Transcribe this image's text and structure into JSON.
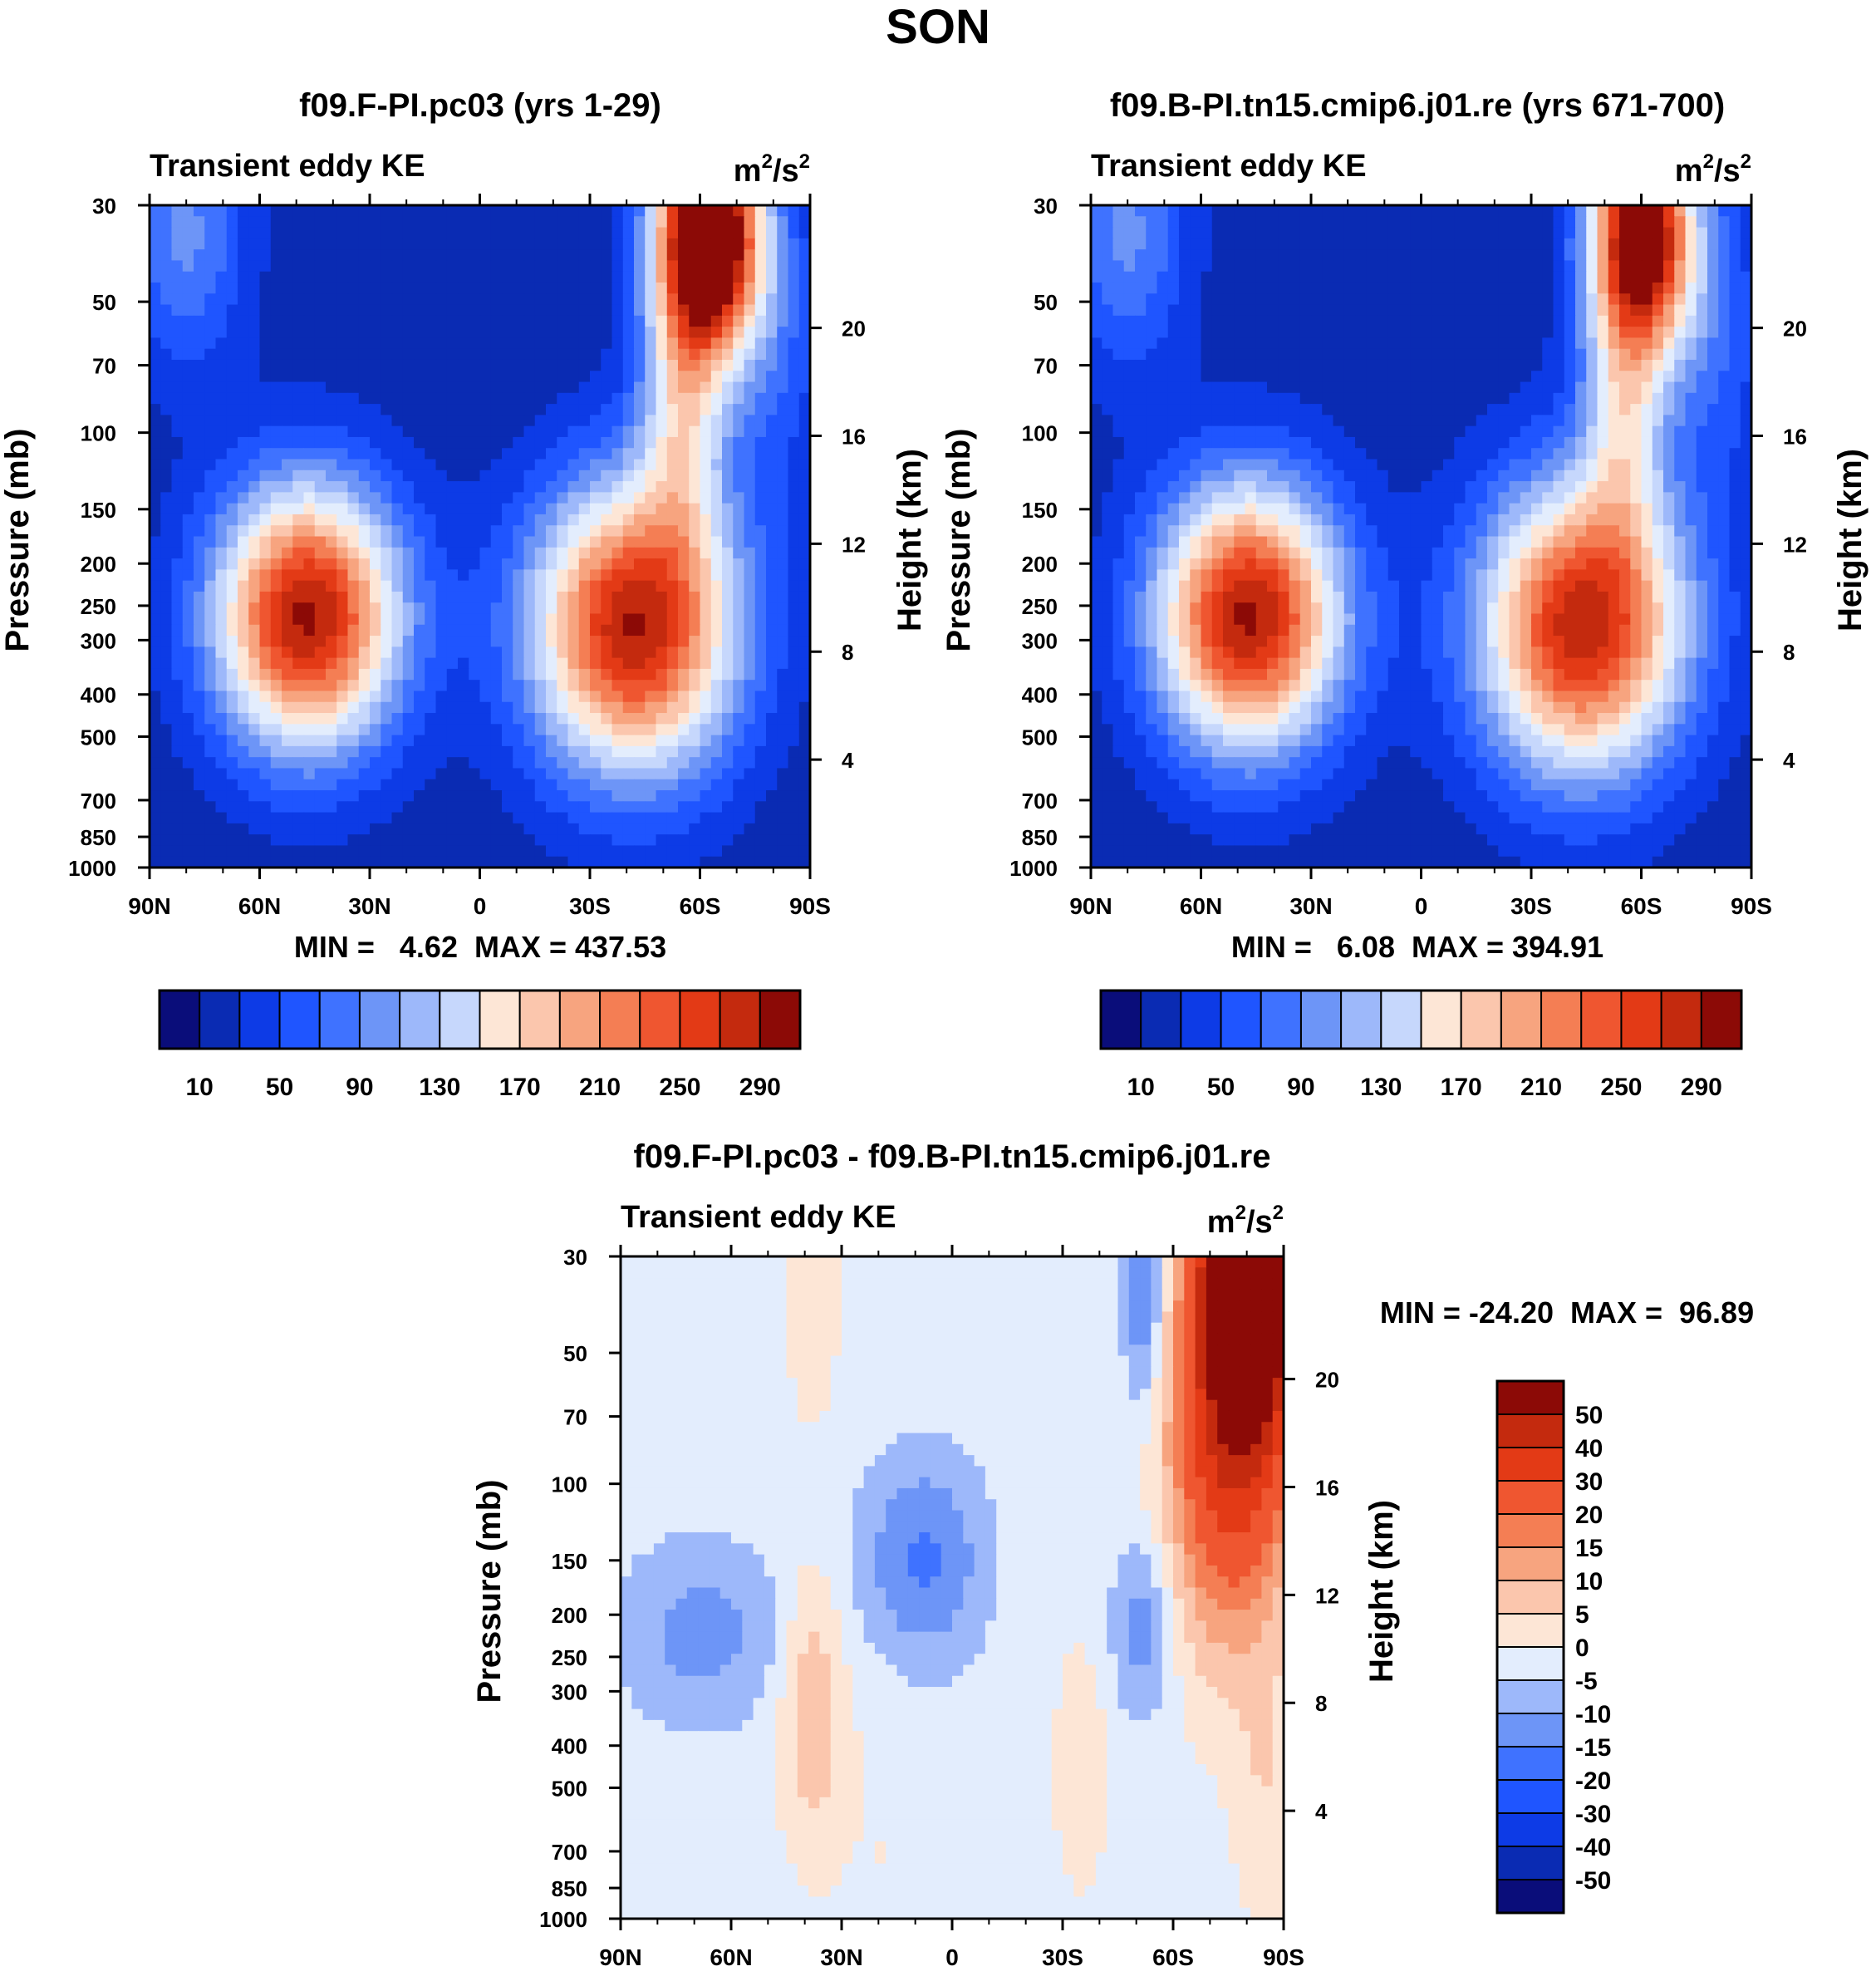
{
  "title": "SON",
  "palette_full": [
    "#0a0d7a",
    "#0a2bb3",
    "#0d3be6",
    "#1f55ff",
    "#3f72ff",
    "#6d95f7",
    "#9db8fa",
    "#c6d7fc",
    "#e3edfd",
    "#fde6d6",
    "#fbc6ad",
    "#f7a47f",
    "#f47e54",
    "#ef5630",
    "#e33a16",
    "#c42a0e",
    "#8c0a06"
  ],
  "chart_data": [
    {
      "type": "contour",
      "id": "p1",
      "title": "f09.F-PI.pc03 (yrs 1-29)",
      "left_label": "Transient eddy KE",
      "units_base": "m",
      "units_exp1": "2",
      "units_mid": "/s",
      "units_exp2": "2",
      "ylabel": "Pressure (mb)",
      "ylabel_right": "Height (km)",
      "xticks": [
        "90N",
        "60N",
        "30N",
        "0",
        "30S",
        "60S",
        "90S"
      ],
      "yticks": [
        "30",
        "50",
        "70",
        "100",
        "150",
        "200",
        "250",
        "300",
        "400",
        "500",
        "700",
        "850",
        "1000"
      ],
      "ytick_values": [
        30,
        50,
        70,
        100,
        150,
        200,
        250,
        300,
        400,
        500,
        700,
        850,
        1000
      ],
      "height_ticks": [
        "20",
        "16",
        "12",
        "8",
        "4"
      ],
      "height_values": [
        20,
        16,
        12,
        8,
        4
      ],
      "stats": "MIN =   4.62  MAX = 437.53",
      "fields": {
        "base": 15,
        "blobs": [
          {
            "lat": 47,
            "p": 265,
            "amp": 300,
            "wl": 18,
            "wp": 0.5
          },
          {
            "lat": -42,
            "p": 280,
            "amp": 295,
            "wl": 20,
            "wp": 0.55
          },
          {
            "lat": -62,
            "p": 35,
            "amp": 400,
            "wl": 10,
            "wp": 0.45
          },
          {
            "lat": -55,
            "p": 90,
            "amp": 120,
            "wl": 8,
            "wp": 0.5
          },
          {
            "lat": 80,
            "p": 35,
            "amp": 80,
            "wl": 12,
            "wp": 0.5
          },
          {
            "lat": -80,
            "p": 60,
            "amp": 50,
            "wl": 10,
            "wp": 0.6
          }
        ]
      }
    },
    {
      "type": "contour",
      "id": "p2",
      "title": "f09.B-PI.tn15.cmip6.j01.re (yrs 671-700)",
      "left_label": "Transient eddy KE",
      "units_base": "m",
      "units_exp1": "2",
      "units_mid": "/s",
      "units_exp2": "2",
      "ylabel": "Pressure (mb)",
      "ylabel_right": "Height (km)",
      "xticks": [
        "90N",
        "60N",
        "30N",
        "0",
        "30S",
        "60S",
        "90S"
      ],
      "yticks": [
        "30",
        "50",
        "70",
        "100",
        "150",
        "200",
        "250",
        "300",
        "400",
        "500",
        "700",
        "850",
        "1000"
      ],
      "ytick_values": [
        30,
        50,
        70,
        100,
        150,
        200,
        250,
        300,
        400,
        500,
        700,
        850,
        1000
      ],
      "height_ticks": [
        "20",
        "16",
        "12",
        "8",
        "4"
      ],
      "height_values": [
        20,
        16,
        12,
        8,
        4
      ],
      "stats": "MIN =   6.08  MAX = 394.91",
      "fields": {
        "base": 15,
        "blobs": [
          {
            "lat": 47,
            "p": 265,
            "amp": 300,
            "wl": 18,
            "wp": 0.5
          },
          {
            "lat": -44,
            "p": 280,
            "amp": 290,
            "wl": 20,
            "wp": 0.55
          },
          {
            "lat": -60,
            "p": 35,
            "amp": 340,
            "wl": 10,
            "wp": 0.45
          },
          {
            "lat": -55,
            "p": 90,
            "amp": 110,
            "wl": 8,
            "wp": 0.5
          },
          {
            "lat": 80,
            "p": 35,
            "amp": 80,
            "wl": 12,
            "wp": 0.5
          },
          {
            "lat": -80,
            "p": 60,
            "amp": 50,
            "wl": 10,
            "wp": 0.6
          }
        ]
      }
    },
    {
      "type": "contour",
      "id": "p3",
      "title": "f09.F-PI.pc03 - f09.B-PI.tn15.cmip6.j01.re",
      "left_label": "Transient eddy KE",
      "units_base": "m",
      "units_exp1": "2",
      "units_mid": "/s",
      "units_exp2": "2",
      "ylabel": "Pressure (mb)",
      "ylabel_right": "Height (km)",
      "xticks": [
        "90N",
        "60N",
        "30N",
        "0",
        "30S",
        "60S",
        "90S"
      ],
      "yticks": [
        "30",
        "50",
        "70",
        "100",
        "150",
        "200",
        "250",
        "300",
        "400",
        "500",
        "700",
        "850",
        "1000"
      ],
      "ytick_values": [
        30,
        50,
        70,
        100,
        150,
        200,
        250,
        300,
        400,
        500,
        700,
        850,
        1000
      ],
      "height_ticks": [
        "20",
        "16",
        "12",
        "8",
        "4"
      ],
      "height_values": [
        20,
        16,
        12,
        8,
        4
      ],
      "stats": "MIN = -24.20  MAX =  96.89",
      "fields": {
        "base": -2,
        "blobs": [
          {
            "lat": -80,
            "p": 33,
            "amp": 90,
            "wl": 9,
            "wp": 0.6
          },
          {
            "lat": -75,
            "p": 90,
            "amp": 30,
            "wl": 12,
            "wp": 0.7
          },
          {
            "lat": 8,
            "p": 150,
            "amp": -14,
            "wl": 12,
            "wp": 0.4
          },
          {
            "lat": 68,
            "p": 220,
            "amp": -10,
            "wl": 16,
            "wp": 0.35
          },
          {
            "lat": -52,
            "p": 210,
            "amp": -12,
            "wl": 6,
            "wp": 0.35
          },
          {
            "lat": -52,
            "p": 40,
            "amp": -14,
            "wl": 4,
            "wp": 0.4
          },
          {
            "lat": 38,
            "p": 330,
            "amp": 12,
            "wl": 6,
            "wp": 0.5
          },
          {
            "lat": 38,
            "p": 35,
            "amp": 6,
            "wl": 5,
            "wp": 0.5
          },
          {
            "lat": -35,
            "p": 450,
            "amp": 6,
            "wl": 5,
            "wp": 0.45
          },
          {
            "lat": -85,
            "p": 500,
            "amp": 6,
            "wl": 6,
            "wp": 0.5
          },
          {
            "lat": 18,
            "p": 700,
            "amp": 2,
            "wl": 10,
            "wp": 0.8
          }
        ]
      }
    }
  ],
  "colorbar_top": {
    "labels": [
      "10",
      "50",
      "90",
      "130",
      "170",
      "210",
      "250",
      "290"
    ],
    "levels": [
      10,
      30,
      50,
      70,
      90,
      110,
      130,
      150,
      170,
      190,
      210,
      230,
      250,
      270,
      290,
      310
    ]
  },
  "colorbar_diff": {
    "labels": [
      "50",
      "40",
      "30",
      "20",
      "15",
      "10",
      "5",
      "0",
      "-5",
      "-10",
      "-15",
      "-20",
      "-30",
      "-40",
      "-50"
    ],
    "levels": [
      -50,
      -40,
      -30,
      -20,
      -15,
      -10,
      -5,
      0,
      5,
      10,
      15,
      20,
      30,
      40,
      50
    ]
  }
}
